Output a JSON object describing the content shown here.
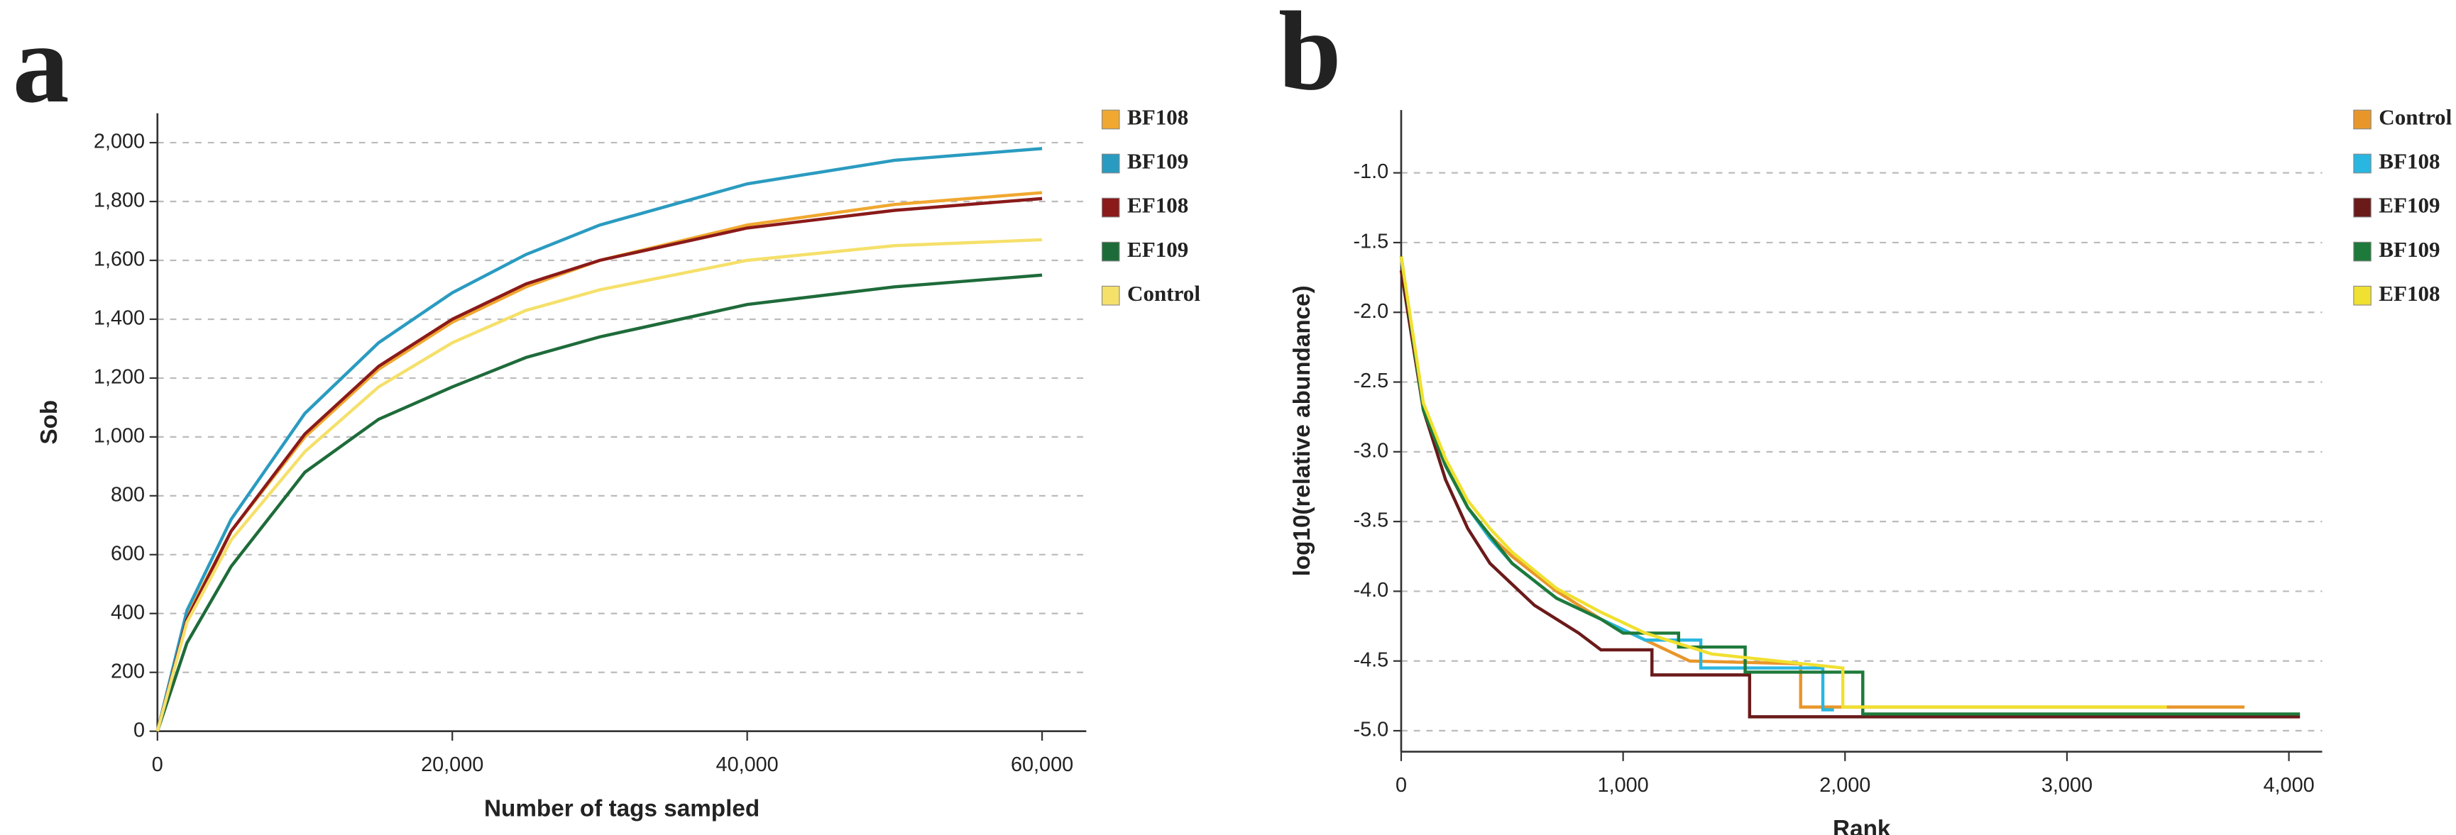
{
  "chart_data": [
    {
      "type": "line",
      "panel_label": "a",
      "xlabel": "Number of tags sampled",
      "ylabel": "Sob",
      "x": [
        0,
        2000,
        5000,
        10000,
        15000,
        20000,
        25000,
        30000,
        40000,
        50000,
        60000
      ],
      "xlim": [
        0,
        63000
      ],
      "ylim": [
        0,
        2100
      ],
      "xticks": [
        0,
        {
          "value": 20000,
          "label": "20,000"
        },
        {
          "value": 40000,
          "label": "40,000"
        },
        {
          "value": 60000,
          "label": "60,000"
        }
      ],
      "yticks": [
        0,
        200,
        400,
        600,
        800,
        {
          "value": 1000,
          "label": "1,000"
        },
        {
          "value": 1200,
          "label": "1,200"
        },
        {
          "value": 1400,
          "label": "1,400"
        },
        {
          "value": 1600,
          "label": "1,600"
        },
        {
          "value": 1800,
          "label": "1,800"
        },
        {
          "value": 2000,
          "label": "2,000"
        }
      ],
      "grid": true,
      "series": [
        {
          "name": "BF108",
          "color": "#f0a830",
          "values": [
            0,
            390,
            680,
            1000,
            1230,
            1390,
            1510,
            1600,
            1720,
            1790,
            1830
          ]
        },
        {
          "name": "BF109",
          "color": "#2a9bc0",
          "values": [
            0,
            410,
            720,
            1080,
            1320,
            1490,
            1620,
            1720,
            1860,
            1940,
            1980
          ]
        },
        {
          "name": "EF108",
          "color": "#8b1a1a",
          "values": [
            0,
            380,
            680,
            1010,
            1240,
            1400,
            1520,
            1600,
            1710,
            1770,
            1810
          ]
        },
        {
          "name": "EF109",
          "color": "#1e6b3a",
          "values": [
            0,
            300,
            560,
            880,
            1060,
            1170,
            1270,
            1340,
            1450,
            1510,
            1550
          ]
        },
        {
          "name": "Control",
          "color": "#f5e06a",
          "values": [
            0,
            370,
            650,
            950,
            1170,
            1320,
            1430,
            1500,
            1600,
            1650,
            1670
          ]
        }
      ]
    },
    {
      "type": "line",
      "panel_label": "b",
      "xlabel": "Rank",
      "ylabel": "log10(relative abundance)",
      "xlim": [
        0,
        4150
      ],
      "ylim": [
        -5.15,
        -0.55
      ],
      "xticks": [
        0,
        {
          "value": 1000,
          "label": "1,000"
        },
        {
          "value": 2000,
          "label": "2,000"
        },
        {
          "value": 3000,
          "label": "3,000"
        },
        {
          "value": 4000,
          "label": "4,000"
        }
      ],
      "yticks": [
        {
          "value": -1,
          "label": "-1.0"
        },
        -1.5,
        {
          "value": -2,
          "label": "-2.0"
        },
        -2.5,
        {
          "value": -3,
          "label": "-3.0"
        },
        -3.5,
        {
          "value": -4,
          "label": "-4.0"
        },
        -4.5,
        {
          "value": -5,
          "label": "-5.0"
        }
      ],
      "grid": true,
      "series": [
        {
          "name": "Control",
          "color": "#e8962a",
          "x": [
            0,
            100,
            200,
            300,
            400,
            500,
            700,
            900,
            1100,
            1300,
            1800,
            1800,
            3800
          ],
          "values": [
            -1.6,
            -2.7,
            -3.1,
            -3.4,
            -3.6,
            -3.75,
            -4.0,
            -4.2,
            -4.35,
            -4.5,
            -4.52,
            -4.83,
            -4.83
          ]
        },
        {
          "name": "BF108",
          "color": "#29b6e0",
          "x": [
            0,
            100,
            200,
            300,
            400,
            500,
            700,
            900,
            1100,
            1350,
            1350,
            1900,
            1900,
            1950
          ],
          "values": [
            -1.6,
            -2.7,
            -3.1,
            -3.4,
            -3.62,
            -3.8,
            -4.05,
            -4.2,
            -4.35,
            -4.35,
            -4.55,
            -4.55,
            -4.85,
            -4.85
          ]
        },
        {
          "name": "EF109",
          "color": "#6b1a1a",
          "x": [
            0,
            100,
            200,
            300,
            400,
            500,
            600,
            700,
            800,
            900,
            1130,
            1130,
            1570,
            1570,
            4050
          ],
          "values": [
            -1.7,
            -2.7,
            -3.2,
            -3.55,
            -3.8,
            -3.95,
            -4.1,
            -4.2,
            -4.3,
            -4.42,
            -4.42,
            -4.6,
            -4.6,
            -4.9,
            -4.9
          ]
        },
        {
          "name": "BF109",
          "color": "#1e7a3a",
          "x": [
            0,
            100,
            200,
            300,
            400,
            500,
            700,
            900,
            1000,
            1250,
            1250,
            1550,
            1550,
            2080,
            2080,
            4050
          ],
          "values": [
            -1.6,
            -2.7,
            -3.1,
            -3.4,
            -3.6,
            -3.8,
            -4.05,
            -4.2,
            -4.3,
            -4.3,
            -4.4,
            -4.4,
            -4.58,
            -4.58,
            -4.88,
            -4.88
          ]
        },
        {
          "name": "EF108",
          "color": "#f0e030",
          "x": [
            0,
            100,
            200,
            300,
            400,
            500,
            700,
            900,
            1100,
            1400,
            1990,
            1990,
            3450
          ],
          "values": [
            -1.6,
            -2.65,
            -3.05,
            -3.35,
            -3.55,
            -3.72,
            -3.98,
            -4.15,
            -4.3,
            -4.45,
            -4.55,
            -4.83,
            -4.83
          ]
        }
      ]
    }
  ]
}
